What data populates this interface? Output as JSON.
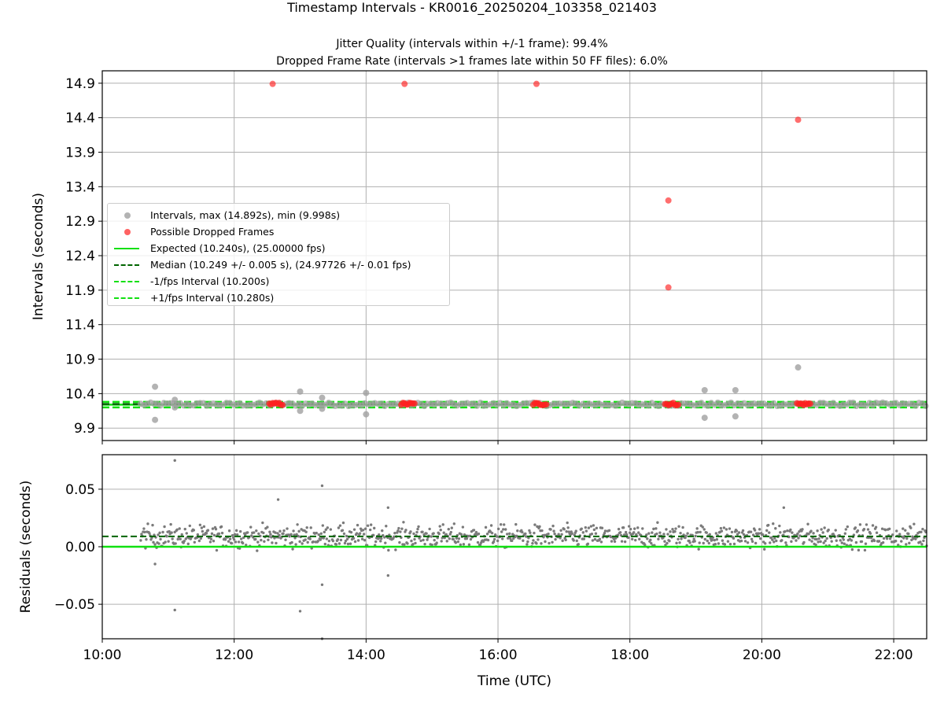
{
  "title": "Timestamp Intervals - KR0016_20250204_103358_021403",
  "subtitle_lines": [
    "Jitter Quality (intervals within +/-1 frame): 99.4%",
    "Dropped Frame Rate (intervals >1 frames late within 50 FF files): 6.0%"
  ],
  "colors": {
    "intervals": "#a0a0a0",
    "dropped": "#ff2020",
    "expected": "#10e010",
    "median": "#006400",
    "fps_bounds": "#10e010",
    "residuals": "#7a7a7a",
    "grid": "#b0b0b0"
  },
  "legend": {
    "intervals": "Intervals, max (14.892s), min (9.998s)",
    "dropped": "Possible Dropped Frames",
    "expected": "Expected (10.240s), (25.00000 fps)",
    "median": "Median (10.249 +/- 0.005 s), (24.97726 +/- 0.01 fps)",
    "minus_fps": "-1/fps Interval (10.200s)",
    "plus_fps": "+1/fps Interval (10.280s)"
  },
  "chart_data": [
    {
      "type": "scatter",
      "title": "Timestamp Intervals - KR0016_20250204_103358_021403",
      "xlabel": "",
      "ylabel": "Intervals (seconds)",
      "xlim_hours_utc": [
        10.0,
        22.5
      ],
      "ylim": [
        9.72,
        15.08
      ],
      "x_tick_labels": [
        "10:00",
        "12:00",
        "14:00",
        "16:00",
        "18:00",
        "20:00",
        "22:00"
      ],
      "y_ticks": [
        9.9,
        10.4,
        10.9,
        11.4,
        11.9,
        12.4,
        12.9,
        13.4,
        13.9,
        14.4,
        14.9
      ],
      "grid": true,
      "legend_position": "center-left",
      "reference_lines": {
        "expected": 10.24,
        "median": 10.249,
        "minus_1_fps": 10.2,
        "plus_1_fps": 10.28
      },
      "dropped_frames": [
        {
          "time": "12:35",
          "interval": 14.89
        },
        {
          "time": "14:35",
          "interval": 14.89
        },
        {
          "time": "16:35",
          "interval": 14.89
        },
        {
          "time": "18:35",
          "interval": 13.2
        },
        {
          "time": "18:35",
          "interval": 11.94
        },
        {
          "time": "20:33",
          "interval": 14.37
        }
      ],
      "dropped_clusters_near_median": [
        "12:38",
        "14:38",
        "16:38",
        "18:38",
        "20:38"
      ],
      "interval_outliers": [
        {
          "time": "10:48",
          "interval": 10.5
        },
        {
          "time": "10:48",
          "interval": 10.02
        },
        {
          "time": "11:06",
          "interval": 10.31
        },
        {
          "time": "11:06",
          "interval": 10.2
        },
        {
          "time": "13:00",
          "interval": 10.43
        },
        {
          "time": "13:00",
          "interval": 10.15
        },
        {
          "time": "13:20",
          "interval": 10.34
        },
        {
          "time": "13:20",
          "interval": 10.18
        },
        {
          "time": "14:00",
          "interval": 10.41
        },
        {
          "time": "14:00",
          "interval": 10.1
        },
        {
          "time": "19:08",
          "interval": 10.45
        },
        {
          "time": "19:08",
          "interval": 10.05
        },
        {
          "time": "19:36",
          "interval": 10.45
        },
        {
          "time": "19:36",
          "interval": 10.07
        },
        {
          "time": "20:33",
          "interval": 10.78
        }
      ],
      "interval_band": {
        "start": "10:35",
        "end": "22:30",
        "min": 10.22,
        "max": 10.27
      }
    },
    {
      "type": "scatter",
      "xlabel": "Time (UTC)",
      "ylabel": "Residuals (seconds)",
      "xlim_hours_utc": [
        10.0,
        22.5
      ],
      "ylim": [
        -0.08,
        0.08
      ],
      "x_tick_labels": [
        "10:00",
        "12:00",
        "14:00",
        "16:00",
        "18:00",
        "20:00",
        "22:00"
      ],
      "y_tick_labels": [
        "0.05",
        "0.00",
        "−0.05"
      ],
      "y_ticks": [
        0.05,
        0.0,
        -0.05
      ],
      "grid": true,
      "reference_lines": {
        "expected": 0.0,
        "median": 0.009
      },
      "residual_band": {
        "center": 0.009,
        "typical_spread": 0.008
      },
      "residual_outliers": [
        {
          "time": "11:06",
          "residual": 0.075
        },
        {
          "time": "11:06",
          "residual": -0.055
        },
        {
          "time": "13:00",
          "residual": -0.056
        },
        {
          "time": "13:20",
          "residual": 0.053
        },
        {
          "time": "13:20",
          "residual": -0.033
        },
        {
          "time": "13:20",
          "residual": -0.08
        },
        {
          "time": "12:40",
          "residual": 0.041
        },
        {
          "time": "14:20",
          "residual": 0.034
        },
        {
          "time": "14:20",
          "residual": -0.025
        },
        {
          "time": "10:48",
          "residual": -0.015
        },
        {
          "time": "20:20",
          "residual": 0.034
        }
      ]
    }
  ]
}
